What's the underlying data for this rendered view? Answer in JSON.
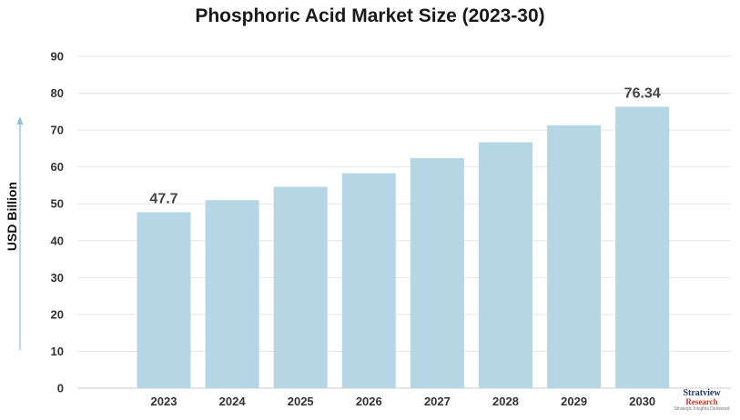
{
  "chart_data": {
    "type": "bar",
    "title": "Phosphoric Acid Market Size (2023-30)",
    "ylabel": "USD Billion",
    "xlabel": "",
    "categories": [
      "2023",
      "2024",
      "2025",
      "2026",
      "2027",
      "2028",
      "2029",
      "2030"
    ],
    "values": [
      47.7,
      51.0,
      54.6,
      58.3,
      62.4,
      66.7,
      71.3,
      76.34
    ],
    "data_labels": {
      "0": "47.7",
      "7": "76.34"
    },
    "ylim": [
      0,
      90
    ],
    "yticks": [
      0,
      10,
      20,
      30,
      40,
      50,
      60,
      70,
      80,
      90
    ],
    "grid": true,
    "bar_color": "#b5d6e4",
    "arrow_color": "#8ec3de"
  },
  "logo": {
    "line1": "Stratview",
    "line2": "Research",
    "line3": "Strategic Insights Delivered"
  }
}
